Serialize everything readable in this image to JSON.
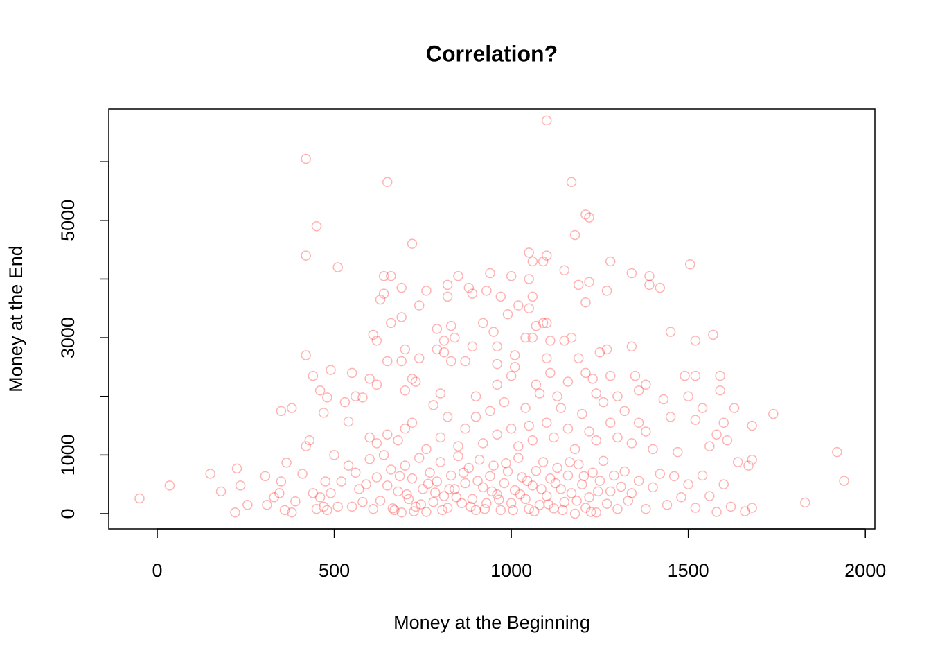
{
  "chart_data": {
    "type": "scatter",
    "title": "Correlation?",
    "x_label": "Money at the Beginning",
    "y_label": "Money at the End",
    "xlim": [
      -137,
      2027
    ],
    "ylim": [
      -260,
      6900
    ],
    "xticks": [
      0,
      500,
      1000,
      1500,
      2000
    ],
    "yticks": [
      0,
      1000,
      {
        "value": 2000,
        "label": null
      },
      3000,
      {
        "value": 4000,
        "label": null
      },
      5000,
      {
        "value": 6000,
        "label": null
      }
    ],
    "color": "rgba(255,0,0,0.3)",
    "x": [
      1100,
      420,
      650,
      1170,
      1210,
      1220,
      450,
      1180,
      720,
      420,
      1050,
      1100,
      1060,
      1090,
      1280,
      1505,
      510,
      1150,
      940,
      1340,
      1000,
      1390,
      640,
      660,
      850,
      1050,
      1220,
      1190,
      820,
      1390,
      1420,
      690,
      880,
      760,
      930,
      1270,
      890,
      640,
      820,
      970,
      1060,
      630,
      1210,
      1020,
      740,
      1050,
      990,
      690,
      660,
      920,
      1070,
      1090,
      1100,
      830,
      790,
      1450,
      1570,
      610,
      840,
      950,
      1040,
      1060,
      1170,
      620,
      1150,
      1520,
      1110,
      810,
      890,
      1340,
      790,
      700,
      1270,
      810,
      1250,
      420,
      960,
      1010,
      1100,
      740,
      650,
      690,
      830,
      870,
      1190,
      1210,
      490,
      550,
      960,
      1010,
      1230,
      440,
      1280,
      1490,
      1520,
      600,
      1590,
      730,
      1110,
      1350,
      350,
      380,
      470,
      480,
      530,
      540,
      580,
      600,
      620,
      650,
      680,
      700,
      720,
      760,
      780,
      800,
      820,
      850,
      870,
      900,
      920,
      940,
      960,
      980,
      1000,
      1020,
      1040,
      1050,
      1060,
      1080,
      1100,
      1120,
      1140,
      1160,
      1180,
      1200,
      1220,
      1240,
      1260,
      1280,
      1300,
      1320,
      1340,
      1360,
      1380,
      1400,
      1430,
      1450,
      1470,
      1500,
      1520,
      1540,
      1560,
      1580,
      1600,
      1610,
      1630,
      1680,
      1740,
      1590,
      1380,
      1360,
      1240,
      1160,
      1070,
      960,
      900,
      800,
      700,
      620,
      560,
      460,
      720,
      1000,
      1130,
      1300,
      -50,
      35,
      150,
      180,
      220,
      225,
      235,
      255,
      305,
      310,
      330,
      345,
      350,
      360,
      365,
      380,
      390,
      410,
      420,
      430,
      440,
      450,
      460,
      470,
      475,
      480,
      490,
      500,
      510,
      520,
      540,
      550,
      560,
      570,
      580,
      590,
      600,
      610,
      620,
      630,
      640,
      650,
      660,
      670,
      680,
      690,
      700,
      710,
      720,
      730,
      740,
      750,
      760,
      770,
      780,
      790,
      800,
      810,
      820,
      830,
      840,
      850,
      860,
      870,
      880,
      890,
      900,
      910,
      920,
      930,
      940,
      950,
      960,
      970,
      980,
      990,
      1000,
      1010,
      1020,
      1030,
      1040,
      1050,
      1060,
      1070,
      1080,
      1090,
      1100,
      1110,
      1120,
      1130,
      1140,
      1150,
      1160,
      1170,
      1180,
      1190,
      1200,
      1210,
      1220,
      1230,
      1240,
      1250,
      1260,
      1270,
      1280,
      1290,
      1300,
      1310,
      1320,
      1330,
      1340,
      1360,
      1380,
      1400,
      1420,
      1440,
      1460,
      1480,
      1500,
      1520,
      1540,
      1560,
      1580,
      1600,
      1620,
      1640,
      1660,
      1670,
      1680,
      1680,
      1830,
      1920,
      1940,
      665,
      685,
      705,
      725,
      745,
      765,
      785,
      805,
      825,
      845,
      865,
      885,
      905,
      925,
      945,
      965,
      985,
      1005,
      1025,
      1045,
      1065,
      1085,
      1105,
      1125,
      1145,
      1165,
      1185,
      1205,
      1225,
      1245
    ],
    "values": [
      6700,
      6050,
      5650,
      5650,
      5100,
      5050,
      4900,
      4750,
      4600,
      4400,
      4450,
      4400,
      4300,
      4300,
      4300,
      4250,
      4200,
      4150,
      4100,
      4100,
      4050,
      4050,
      4050,
      4050,
      4050,
      4000,
      3950,
      3900,
      3900,
      3900,
      3850,
      3850,
      3850,
      3800,
      3800,
      3800,
      3750,
      3750,
      3700,
      3700,
      3700,
      3650,
      3600,
      3550,
      3550,
      3500,
      3400,
      3350,
      3250,
      3250,
      3200,
      3250,
      3250,
      3200,
      3150,
      3100,
      3050,
      3050,
      3000,
      3100,
      3000,
      3000,
      3000,
      2950,
      2950,
      2950,
      2950,
      2950,
      2850,
      2850,
      2800,
      2800,
      2800,
      2750,
      2750,
      2700,
      2850,
      2700,
      2650,
      2650,
      2600,
      2600,
      2600,
      2600,
      2650,
      2400,
      2450,
      2400,
      2550,
      2500,
      2300,
      2350,
      2350,
      2350,
      2350,
      2300,
      2350,
      2250,
      2400,
      2350,
      1750,
      1800,
      1720,
      1980,
      1900,
      1570,
      1980,
      1300,
      1200,
      1350,
      1250,
      1450,
      1550,
      1100,
      1850,
      1300,
      1650,
      1150,
      1450,
      1650,
      1200,
      1750,
      1350,
      1900,
      1450,
      1150,
      1800,
      1500,
      1250,
      2050,
      1550,
      1300,
      1800,
      1450,
      1100,
      1700,
      1400,
      1250,
      1900,
      1550,
      1300,
      1750,
      1200,
      1550,
      1400,
      1100,
      1950,
      1650,
      1050,
      2000,
      1600,
      1800,
      1150,
      1350,
      1550,
      1250,
      1800,
      1500,
      1700,
      2100,
      2200,
      2100,
      2050,
      2250,
      2200,
      2200,
      2000,
      2050,
      2100,
      2200,
      2000,
      2100,
      2300,
      2350,
      2000,
      2000,
      260,
      480,
      680,
      380,
      20,
      770,
      480,
      150,
      640,
      150,
      280,
      350,
      550,
      60,
      870,
      20,
      210,
      680,
      1150,
      1250,
      350,
      80,
      280,
      120,
      550,
      60,
      350,
      1000,
      120,
      550,
      820,
      120,
      700,
      420,
      200,
      500,
      930,
      80,
      620,
      220,
      1000,
      480,
      750,
      60,
      380,
      20,
      820,
      250,
      600,
      120,
      950,
      420,
      30,
      700,
      200,
      550,
      880,
      300,
      100,
      650,
      420,
      980,
      180,
      520,
      780,
      250,
      60,
      920,
      450,
      180,
      640,
      820,
      330,
      60,
      520,
      720,
      180,
      400,
      950,
      620,
      250,
      80,
      480,
      730,
      150,
      880,
      300,
      600,
      90,
      780,
      420,
      200,
      650,
      350,
      0,
      840,
      500,
      100,
      280,
      700,
      20,
      560,
      900,
      170,
      380,
      650,
      80,
      460,
      720,
      220,
      350,
      560,
      80,
      450,
      680,
      150,
      640,
      280,
      500,
      100,
      650,
      300,
      30,
      500,
      120,
      880,
      40,
      820,
      920,
      100,
      190,
      1050,
      560,
      90,
      640,
      330,
      40,
      160,
      510,
      360,
      60,
      420,
      280,
      700,
      120,
      560,
      80,
      380,
      240,
      860,
      60,
      330,
      560,
      40,
      420,
      160,
      520,
      60,
      880,
      220,
      640,
      30,
      380
    ]
  }
}
